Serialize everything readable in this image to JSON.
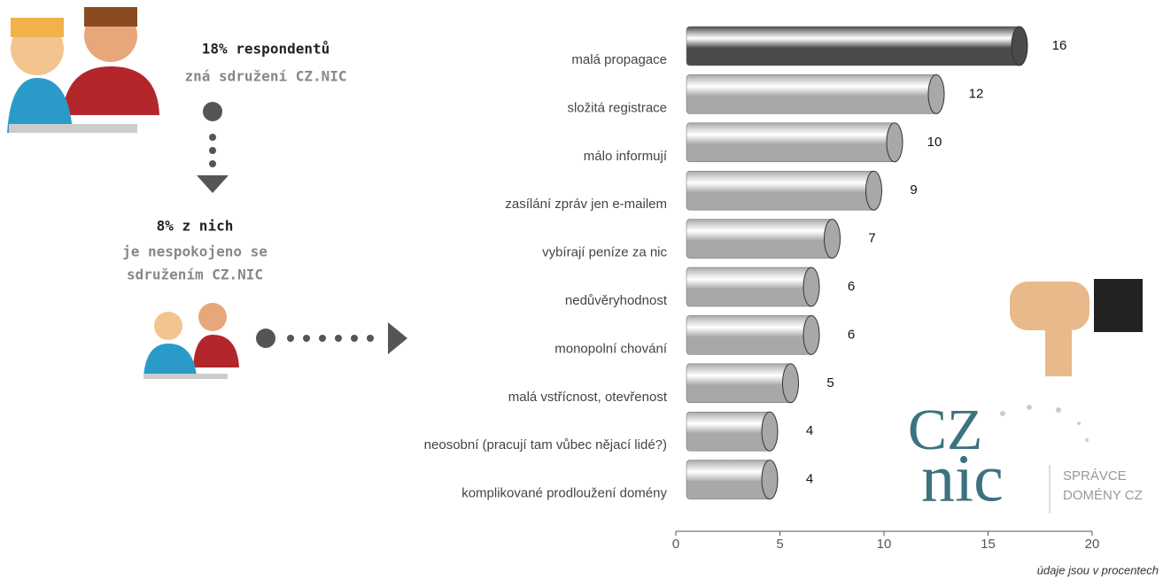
{
  "chart_data": {
    "type": "barh",
    "categories": [
      "malá propagace",
      "složitá registrace",
      "málo informují",
      "zasílání zpráv jen e-mailem",
      "vybírají peníze za nic",
      "nedůvěryhodnost",
      "monopolní chování",
      "malá vstřícnost, otevřenost",
      "neosobní (pracují tam vůbec nějací lidé?)",
      "komplikované prodloužení domény"
    ],
    "values": [
      16,
      12,
      10,
      9,
      7,
      6,
      6,
      5,
      4,
      4
    ],
    "colors": [
      "#4a4a4a",
      "#a8a8a8",
      "#a8a8a8",
      "#a8a8a8",
      "#a8a8a8",
      "#a8a8a8",
      "#a8a8a8",
      "#a8a8a8",
      "#a8a8a8",
      "#a8a8a8"
    ],
    "xlim": [
      0,
      20
    ],
    "xticks": [
      0,
      5,
      10,
      15,
      20
    ],
    "note": "údaje jsou v procentech"
  },
  "annotations": {
    "top_bold": "18% respondentů",
    "top_sub": "zná sdružení CZ.NIC",
    "mid_bold": "8% z nich",
    "mid_line1": "je nespokojeno se",
    "mid_line2": "sdružením CZ.NIC"
  },
  "logo": {
    "cz": "CZ",
    "nic": "nic",
    "line1": "SPRÁVCE",
    "line2": "DOMÉNY CZ"
  }
}
